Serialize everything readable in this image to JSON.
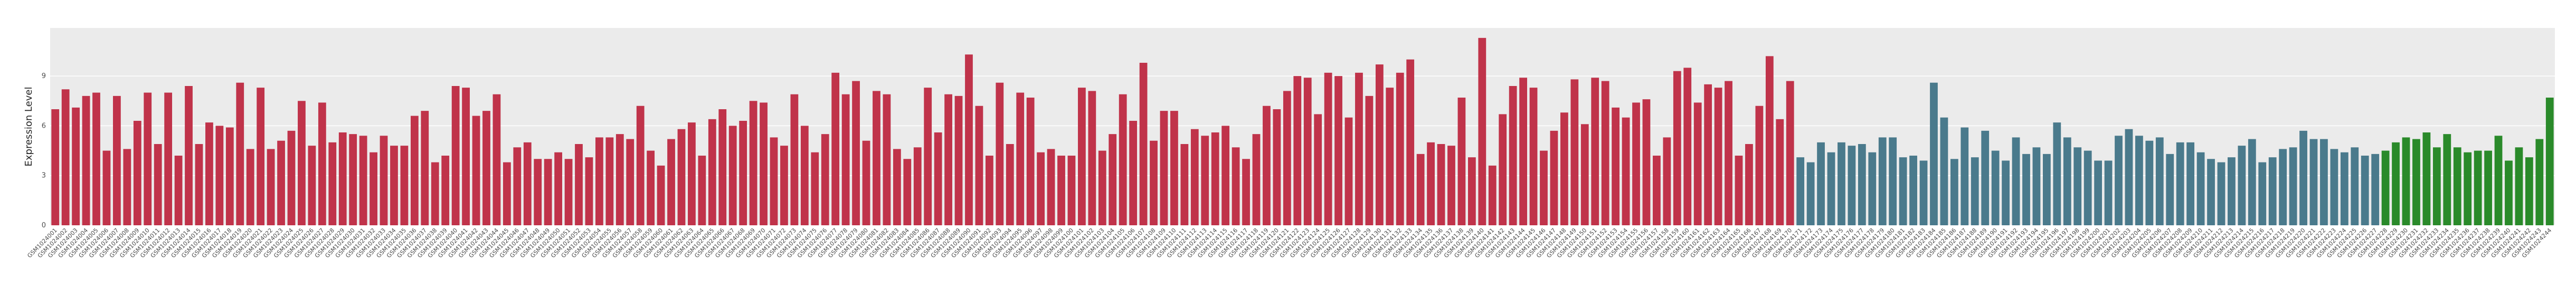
{
  "chart_data": {
    "type": "bar",
    "ylabel": "Expression Level",
    "ylim": [
      0,
      11.9
    ],
    "yticks": [
      0,
      3,
      6,
      9
    ],
    "grid": true,
    "series": [
      {
        "color": "#c0334a",
        "categories": [
          "GSM1024001",
          "GSM1024002",
          "GSM1024003",
          "GSM1024004",
          "GSM1024005",
          "GSM1024006",
          "GSM1024007",
          "GSM1024008",
          "GSM1024009",
          "GSM1024010",
          "GSM1024011",
          "GSM1024012",
          "GSM1024013",
          "GSM1024014",
          "GSM1024015",
          "GSM1024016",
          "GSM1024017",
          "GSM1024018",
          "GSM1024019",
          "GSM1024020",
          "GSM1024021",
          "GSM1024022",
          "GSM1024023",
          "GSM1024024",
          "GSM1024025",
          "GSM1024026",
          "GSM1024027",
          "GSM1024028",
          "GSM1024029",
          "GSM1024030",
          "GSM1024031",
          "GSM1024032",
          "GSM1024033",
          "GSM1024034",
          "GSM1024035",
          "GSM1024036",
          "GSM1024037",
          "GSM1024038",
          "GSM1024039",
          "GSM1024040",
          "GSM1024041",
          "GSM1024042",
          "GSM1024043",
          "GSM1024044",
          "GSM1024045",
          "GSM1024046",
          "GSM1024047",
          "GSM1024048",
          "GSM1024049",
          "GSM1024050",
          "GSM1024051",
          "GSM1024052",
          "GSM1024053",
          "GSM1024054",
          "GSM1024055",
          "GSM1024056",
          "GSM1024057",
          "GSM1024058",
          "GSM1024059",
          "GSM1024060",
          "GSM1024061",
          "GSM1024062",
          "GSM1024063",
          "GSM1024064",
          "GSM1024065",
          "GSM1024066",
          "GSM1024067",
          "GSM1024068",
          "GSM1024069",
          "GSM1024070",
          "GSM1024071",
          "GSM1024072",
          "GSM1024073",
          "GSM1024074",
          "GSM1024075",
          "GSM1024076",
          "GSM1024077",
          "GSM1024078",
          "GSM1024079",
          "GSM1024080",
          "GSM1024081",
          "GSM1024082",
          "GSM1024083",
          "GSM1024084",
          "GSM1024085",
          "GSM1024086",
          "GSM1024087",
          "GSM1024088",
          "GSM1024089",
          "GSM1024090",
          "GSM1024091",
          "GSM1024092",
          "GSM1024093",
          "GSM1024094",
          "GSM1024095",
          "GSM1024096",
          "GSM1024097",
          "GSM1024098",
          "GSM1024099",
          "GSM1024100",
          "GSM1024101",
          "GSM1024102",
          "GSM1024103",
          "GSM1024104",
          "GSM1024105",
          "GSM1024106",
          "GSM1024107",
          "GSM1024108",
          "GSM1024109",
          "GSM1024110",
          "GSM1024111",
          "GSM1024112",
          "GSM1024113",
          "GSM1024114",
          "GSM1024115",
          "GSM1024116",
          "GSM1024117",
          "GSM1024118",
          "GSM1024119",
          "GSM1024120",
          "GSM1024121",
          "GSM1024122",
          "GSM1024123",
          "GSM1024124",
          "GSM1024125",
          "GSM1024126",
          "GSM1024127",
          "GSM1024128",
          "GSM1024129",
          "GSM1024130",
          "GSM1024131",
          "GSM1024132",
          "GSM1024133",
          "GSM1024134",
          "GSM1024135",
          "GSM1024136",
          "GSM1024137",
          "GSM1024138",
          "GSM1024139",
          "GSM1024140",
          "GSM1024141",
          "GSM1024142",
          "GSM1024143",
          "GSM1024144",
          "GSM1024145",
          "GSM1024146",
          "GSM1024147",
          "GSM1024148",
          "GSM1024149",
          "GSM1024150",
          "GSM1024151",
          "GSM1024152",
          "GSM1024153",
          "GSM1024154",
          "GSM1024155",
          "GSM1024156",
          "GSM1024157",
          "GSM1024158",
          "GSM1024159",
          "GSM1024160",
          "GSM1024161",
          "GSM1024162",
          "GSM1024163",
          "GSM1024164",
          "GSM1024165",
          "GSM1024166",
          "GSM1024167",
          "GSM1024168",
          "GSM1024169",
          "GSM1024170"
        ],
        "values": [
          7.0,
          8.2,
          7.1,
          7.8,
          8.0,
          4.5,
          7.8,
          4.6,
          6.3,
          8.0,
          4.9,
          8.0,
          4.2,
          8.4,
          4.9,
          6.2,
          6.0,
          5.9,
          8.6,
          4.6,
          8.3,
          4.6,
          5.1,
          5.7,
          7.5,
          4.8,
          7.4,
          5.0,
          5.6,
          5.5,
          5.4,
          4.4,
          5.4,
          4.8,
          4.8,
          6.6,
          6.9,
          3.8,
          4.2,
          8.4,
          8.3,
          6.6,
          6.9,
          7.9,
          3.8,
          4.7,
          5.0,
          4.0,
          4.0,
          4.4,
          4.0,
          4.9,
          4.1,
          5.3,
          5.3,
          5.5,
          5.2,
          7.2,
          4.5,
          3.6,
          5.2,
          5.8,
          6.2,
          4.2,
          6.4,
          7.0,
          6.0,
          6.3,
          7.5,
          7.4,
          5.3,
          4.8,
          7.9,
          6.0,
          4.4,
          5.5,
          9.2,
          7.9,
          8.7,
          5.1,
          8.1,
          7.9,
          4.6,
          4.0,
          4.7,
          8.3,
          5.6,
          7.9,
          7.8,
          10.3,
          7.2,
          4.2,
          8.6,
          4.9,
          8.0,
          7.7,
          4.4,
          4.6,
          4.2,
          4.2,
          8.3,
          8.1,
          4.5,
          5.5,
          7.9,
          6.3,
          9.8,
          5.1,
          6.9,
          6.9,
          4.9,
          5.8,
          5.4,
          5.6,
          6.0,
          4.7,
          4.0,
          5.5,
          7.2,
          7.0,
          8.1,
          9.0,
          8.9,
          6.7,
          9.2,
          9.0,
          6.5,
          9.2,
          7.8,
          9.7,
          8.3,
          9.2,
          10.0,
          4.3,
          5.0,
          4.9,
          4.8,
          7.7,
          4.1,
          11.3,
          3.6,
          6.7,
          8.4,
          8.9,
          8.3,
          4.5,
          5.7,
          6.8,
          8.8,
          6.1,
          8.9,
          8.7,
          7.1,
          6.5,
          7.4,
          7.6,
          4.2,
          5.3,
          9.3,
          9.5,
          7.4,
          8.5,
          8.3,
          8.7,
          4.2,
          4.9,
          7.2,
          10.2,
          6.4,
          8.7
        ]
      },
      {
        "color": "#4a7a8c",
        "categories": [
          "GSM1024171",
          "GSM1024172",
          "GSM1024173",
          "GSM1024174",
          "GSM1024175",
          "GSM1024176",
          "GSM1024177",
          "GSM1024178",
          "GSM1024179",
          "GSM1024180",
          "GSM1024181",
          "GSM1024182",
          "GSM1024183",
          "GSM1024184",
          "GSM1024185",
          "GSM1024186",
          "GSM1024187",
          "GSM1024188",
          "GSM1024189",
          "GSM1024190",
          "GSM1024191",
          "GSM1024192",
          "GSM1024193",
          "GSM1024194",
          "GSM1024195",
          "GSM1024196",
          "GSM1024197",
          "GSM1024198",
          "GSM1024199",
          "GSM1024200",
          "GSM1024201",
          "GSM1024202",
          "GSM1024203",
          "GSM1024204",
          "GSM1024205",
          "GSM1024206",
          "GSM1024207",
          "GSM1024208",
          "GSM1024209",
          "GSM1024210",
          "GSM1024211",
          "GSM1024212",
          "GSM1024213",
          "GSM1024214",
          "GSM1024215",
          "GSM1024216",
          "GSM1024217",
          "GSM1024218",
          "GSM1024219",
          "GSM1024220",
          "GSM1024221",
          "GSM1024222",
          "GSM1024223",
          "GSM1024224",
          "GSM1024225",
          "GSM1024226",
          "GSM1024227"
        ],
        "values": [
          4.1,
          3.8,
          5.0,
          4.4,
          5.0,
          4.8,
          4.9,
          4.4,
          5.3,
          5.3,
          4.1,
          4.2,
          3.9,
          8.6,
          6.5,
          4.0,
          5.9,
          4.1,
          5.7,
          4.5,
          3.9,
          5.3,
          4.3,
          4.7,
          4.3,
          6.2,
          5.3,
          4.7,
          4.5,
          3.9,
          3.9,
          5.4,
          5.8,
          5.4,
          5.1,
          5.3,
          4.3,
          5.0,
          5.0,
          4.4,
          4.0,
          3.8,
          4.1,
          4.8,
          5.2,
          3.8,
          4.1,
          4.6,
          4.7,
          5.7,
          5.2,
          5.2,
          4.6,
          4.4,
          4.7,
          4.2,
          4.3
        ]
      },
      {
        "color": "#2a8a2a",
        "categories": [
          "GSM1024228",
          "GSM1024229",
          "GSM1024230",
          "GSM1024231",
          "GSM1024232",
          "GSM1024233",
          "GSM1024234",
          "GSM1024235",
          "GSM1024236",
          "GSM1024237",
          "GSM1024238",
          "GSM1024239",
          "GSM1024240",
          "GSM1024241",
          "GSM1024242",
          "GSM1024243",
          "GSM1024244"
        ],
        "values": [
          4.5,
          5.0,
          5.3,
          5.2,
          5.6,
          4.7,
          5.5,
          4.7,
          4.4,
          4.5,
          4.5,
          5.4,
          3.9,
          4.7,
          4.1,
          5.2,
          7.7
        ]
      }
    ]
  }
}
